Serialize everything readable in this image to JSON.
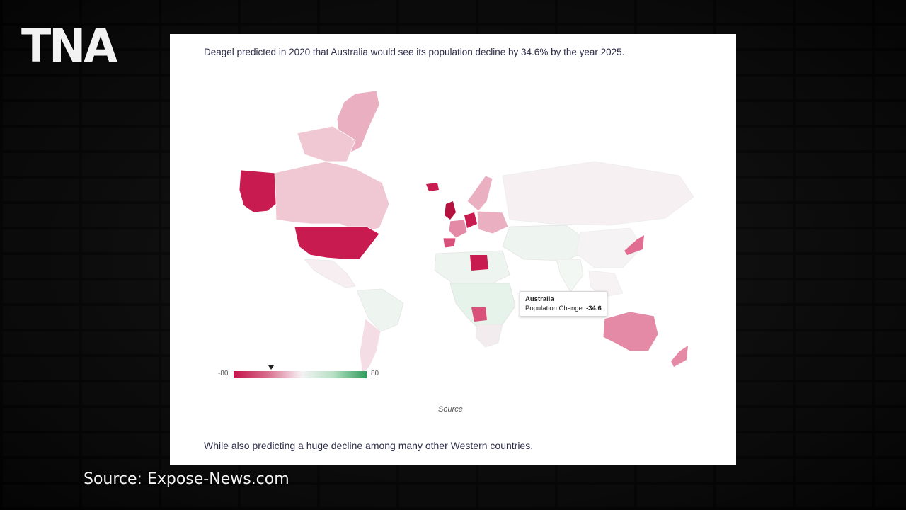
{
  "branding": {
    "logo_text": "TNA"
  },
  "article": {
    "headline": "Deagel predicted in 2020 that Australia would see its population decline by 34.6% by the year 2025.",
    "footer_text": "While also predicting a huge decline among many other Western countries.",
    "source_link": "Source"
  },
  "map": {
    "type": "choropleth",
    "metric": "Population Change",
    "legend": {
      "min": "-80",
      "max": "80",
      "marker_value": -34.6
    },
    "colors": {
      "decline_strong": "#c2144a",
      "decline_light": "#eab0c2",
      "neutral": "#f2f2f2",
      "growth": "#2e9b5a"
    },
    "tooltip": {
      "country": "Australia",
      "label": "Population Change:",
      "value": "-34.6"
    }
  },
  "caption": {
    "text": "Source: Expose-News.com"
  }
}
